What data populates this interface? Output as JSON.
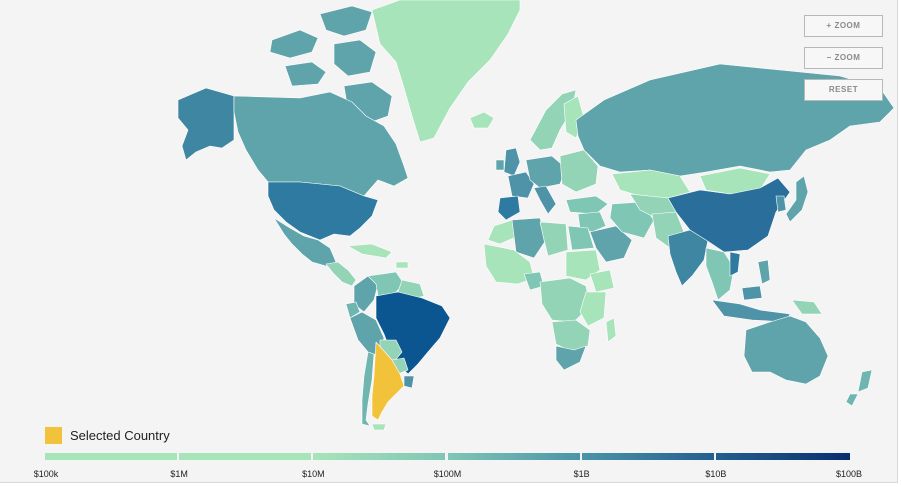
{
  "controls": {
    "zoom_in": "+ ZOOM",
    "zoom_out": "− ZOOM",
    "reset": "RESET"
  },
  "legend": {
    "selected_label": "Selected Country",
    "selected_color": "#f2c33a",
    "scale_ticks": [
      "$100k",
      "$1M",
      "$10M",
      "$100M",
      "$1B",
      "$10B",
      "$100B"
    ],
    "scale_colors": [
      "#a8e4b9",
      "#a8e4b9",
      "#a8e4b9",
      "#7fc6b5",
      "#4c94a8",
      "#235f90",
      "#0a2f6e"
    ]
  },
  "map": {
    "selected_country": "Argentina",
    "ocean_color": "#f4f4f4",
    "regions": [
      {
        "name": "Greenland",
        "color": "#a8e4b9"
      },
      {
        "name": "Canada",
        "color": "#5fa3ab"
      },
      {
        "name": "Alaska",
        "color": "#3f86a2"
      },
      {
        "name": "United States",
        "color": "#2e7aa0"
      },
      {
        "name": "Mexico",
        "color": "#5fa3ab"
      },
      {
        "name": "Central America",
        "color": "#93d4b6"
      },
      {
        "name": "Caribbean",
        "color": "#a8e4b9"
      },
      {
        "name": "Colombia",
        "color": "#5fa3ab"
      },
      {
        "name": "Venezuela",
        "color": "#7fc6b5"
      },
      {
        "name": "Guianas",
        "color": "#93d4b6"
      },
      {
        "name": "Ecuador",
        "color": "#6fb5b0"
      },
      {
        "name": "Peru",
        "color": "#5fa3ab"
      },
      {
        "name": "Bolivia",
        "color": "#93d4b6"
      },
      {
        "name": "Brazil",
        "color": "#0b5690"
      },
      {
        "name": "Paraguay",
        "color": "#93d4b6"
      },
      {
        "name": "Uruguay",
        "color": "#4f93a8"
      },
      {
        "name": "Chile",
        "color": "#6fb5b0"
      },
      {
        "name": "Argentina",
        "color": "#f2c33a"
      },
      {
        "name": "Falklands",
        "color": "#a8e4b9"
      },
      {
        "name": "Iceland",
        "color": "#a8e4b9"
      },
      {
        "name": "United Kingdom",
        "color": "#4f93a8"
      },
      {
        "name": "Ireland",
        "color": "#5fa3ab"
      },
      {
        "name": "Scandinavia",
        "color": "#93d4b6"
      },
      {
        "name": "Finland",
        "color": "#a8e4b9"
      },
      {
        "name": "France",
        "color": "#4f93a8"
      },
      {
        "name": "Iberia",
        "color": "#2e7aa0"
      },
      {
        "name": "Central Europe",
        "color": "#5fa3ab"
      },
      {
        "name": "Italy",
        "color": "#4f93a8"
      },
      {
        "name": "Eastern Europe",
        "color": "#93d4b6"
      },
      {
        "name": "Russia",
        "color": "#5fa3ab"
      },
      {
        "name": "Kazakhstan",
        "color": "#a8e4b9"
      },
      {
        "name": "Mongolia",
        "color": "#a8e4b9"
      },
      {
        "name": "Turkey",
        "color": "#7fc6b5"
      },
      {
        "name": "Middle East",
        "color": "#7fc6b5"
      },
      {
        "name": "Saudi Arabia",
        "color": "#5fa3ab"
      },
      {
        "name": "Iran",
        "color": "#7fc6b5"
      },
      {
        "name": "Central Asia",
        "color": "#93d4b6"
      },
      {
        "name": "Afghanistan / Pakistan",
        "color": "#93d4b6"
      },
      {
        "name": "India",
        "color": "#3f86a2"
      },
      {
        "name": "China",
        "color": "#2a6f9c"
      },
      {
        "name": "Korea",
        "color": "#4f93a8"
      },
      {
        "name": "Japan",
        "color": "#5fa3ab"
      },
      {
        "name": "Southeast Asia",
        "color": "#7fc6b5"
      },
      {
        "name": "Vietnam",
        "color": "#2e7aa0"
      },
      {
        "name": "Philippines",
        "color": "#5fa3ab"
      },
      {
        "name": "Indonesia",
        "color": "#4f93a8"
      },
      {
        "name": "Papua New Guinea",
        "color": "#93d4b6"
      },
      {
        "name": "Australia",
        "color": "#5fa3ab"
      },
      {
        "name": "New Zealand",
        "color": "#6fb5b0"
      },
      {
        "name": "Morocco",
        "color": "#a8e4b9"
      },
      {
        "name": "Algeria",
        "color": "#5fa3ab"
      },
      {
        "name": "Libya",
        "color": "#93d4b6"
      },
      {
        "name": "Egypt",
        "color": "#7fc6b5"
      },
      {
        "name": "Sudan",
        "color": "#a8e4b9"
      },
      {
        "name": "West Africa",
        "color": "#a8e4b9"
      },
      {
        "name": "Nigeria",
        "color": "#7fc6b5"
      },
      {
        "name": "Central Africa",
        "color": "#93d4b6"
      },
      {
        "name": "Ethiopia",
        "color": "#a8e4b9"
      },
      {
        "name": "East Africa",
        "color": "#a8e4b9"
      },
      {
        "name": "Southern Africa",
        "color": "#93d4b6"
      },
      {
        "name": "South Africa",
        "color": "#5fa3ab"
      },
      {
        "name": "Madagascar",
        "color": "#a8e4b9"
      }
    ]
  }
}
